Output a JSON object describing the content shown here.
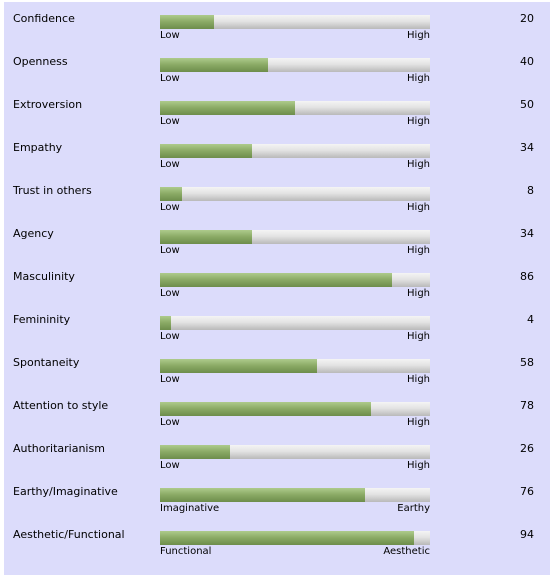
{
  "traits": [
    {
      "label": "Confidence",
      "value": 20,
      "low": "Low",
      "high": "High"
    },
    {
      "label": "Openness",
      "value": 40,
      "low": "Low",
      "high": "High"
    },
    {
      "label": "Extroversion",
      "value": 50,
      "low": "Low",
      "high": "High"
    },
    {
      "label": "Empathy",
      "value": 34,
      "low": "Low",
      "high": "High"
    },
    {
      "label": "Trust in others",
      "value": 8,
      "low": "Low",
      "high": "High"
    },
    {
      "label": "Agency",
      "value": 34,
      "low": "Low",
      "high": "High"
    },
    {
      "label": "Masculinity",
      "value": 86,
      "low": "Low",
      "high": "High"
    },
    {
      "label": "Femininity",
      "value": 4,
      "low": "Low",
      "high": "High"
    },
    {
      "label": "Spontaneity",
      "value": 58,
      "low": "Low",
      "high": "High"
    },
    {
      "label": "Attention to style",
      "value": 78,
      "low": "Low",
      "high": "High"
    },
    {
      "label": "Authoritarianism",
      "value": 26,
      "low": "Low",
      "high": "High"
    },
    {
      "label": "Earthy/Imaginative",
      "value": 76,
      "low": "Imaginative",
      "high": "Earthy"
    },
    {
      "label": "Aesthetic/Functional",
      "value": 94,
      "low": "Functional",
      "high": "Aesthetic"
    }
  ],
  "colors": {
    "panel_background": "#dcdcfb",
    "bar_fill": "#89a964",
    "bar_track": "#e3e3e3"
  },
  "scale_max": 100
}
